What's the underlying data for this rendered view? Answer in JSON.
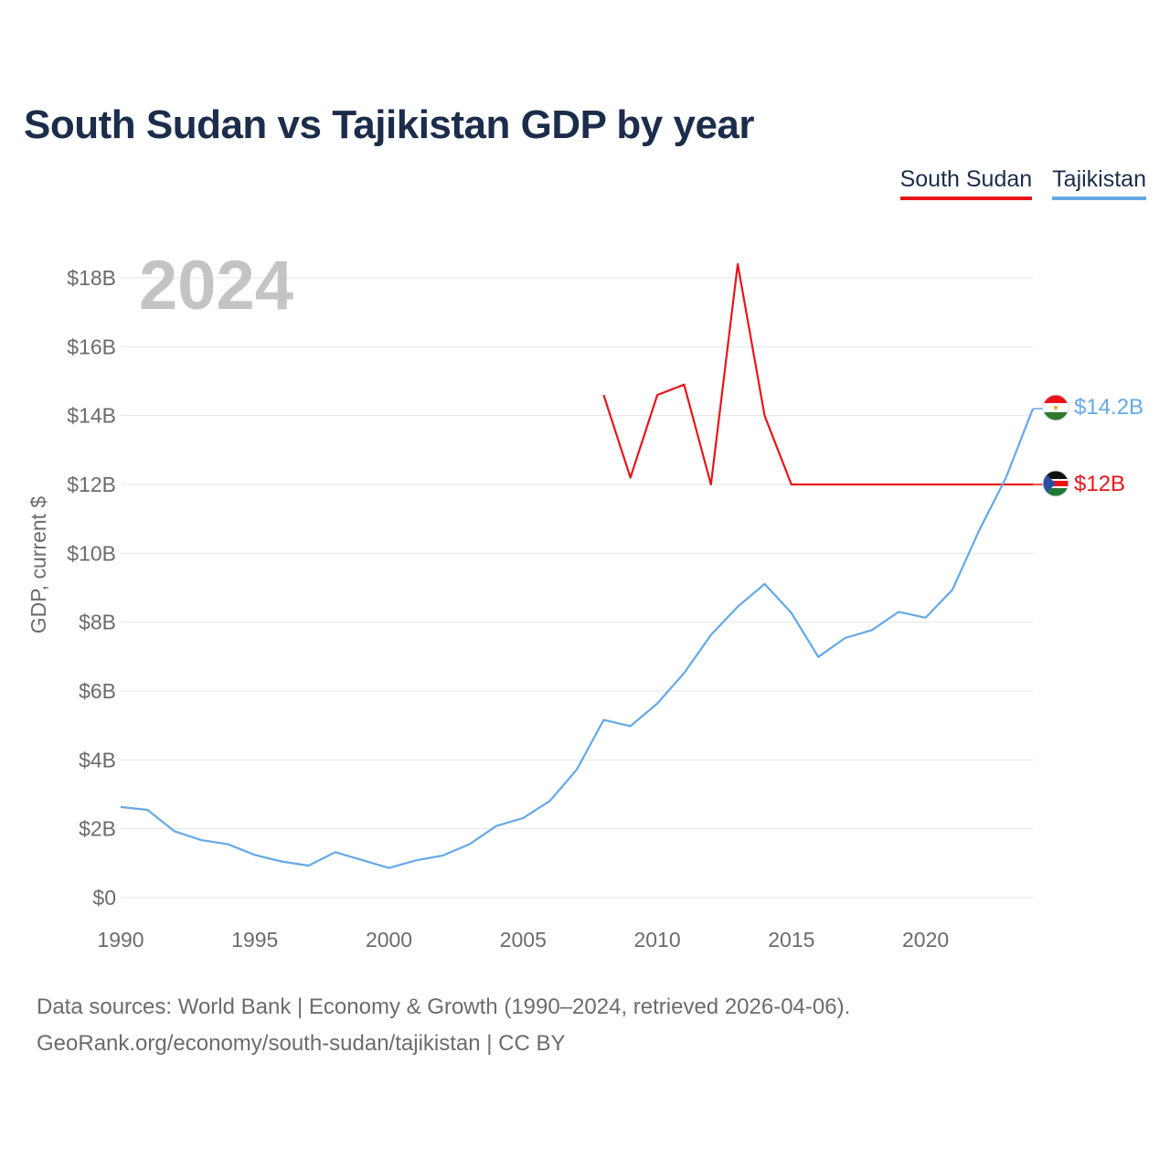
{
  "title": "South Sudan vs Tajikistan GDP by year",
  "legend": [
    {
      "name": "South Sudan",
      "color": "#e8141a"
    },
    {
      "name": "Tajikistan",
      "color": "#64a8e8"
    }
  ],
  "year_label": "2024",
  "footer": {
    "line1": "Data sources: World Bank | Economy & Growth (1990–2024, retrieved 2026-04-06).",
    "line2": "GeoRank.org/economy/south-sudan/tajikistan | CC BY"
  },
  "chart_data": {
    "type": "line",
    "title": "South Sudan vs Tajikistan GDP by year",
    "xlabel": "",
    "ylabel": "GDP, current $",
    "xlim": [
      1990,
      2024
    ],
    "ylim": [
      0,
      18
    ],
    "y_unit": "billion USD",
    "x_ticks": [
      1990,
      1995,
      2000,
      2005,
      2010,
      2015,
      2020
    ],
    "y_ticks": [
      {
        "value": 0,
        "label": "$0"
      },
      {
        "value": 2,
        "label": "$2B"
      },
      {
        "value": 4,
        "label": "$4B"
      },
      {
        "value": 6,
        "label": "$6B"
      },
      {
        "value": 8,
        "label": "$8B"
      },
      {
        "value": 10,
        "label": "$10B"
      },
      {
        "value": 12,
        "label": "$12B"
      },
      {
        "value": 14,
        "label": "$14B"
      },
      {
        "value": 16,
        "label": "$16B"
      },
      {
        "value": 18,
        "label": "$18B"
      }
    ],
    "grid": true,
    "legend_position": "top-right",
    "series": [
      {
        "name": "South Sudan",
        "color": "#e8141a",
        "x": [
          2008,
          2009,
          2010,
          2011,
          2012,
          2013,
          2014,
          2015,
          2024
        ],
        "values": [
          14.6,
          12.2,
          14.6,
          14.9,
          12.0,
          18.4,
          14.0,
          12.0,
          12.0
        ],
        "end_label": "$12B"
      },
      {
        "name": "Tajikistan",
        "color": "#64a8e8",
        "x": [
          1990,
          1991,
          1992,
          1993,
          1994,
          1995,
          1996,
          1997,
          1998,
          1999,
          2000,
          2001,
          2002,
          2003,
          2004,
          2005,
          2006,
          2007,
          2008,
          2009,
          2010,
          2011,
          2012,
          2013,
          2014,
          2015,
          2016,
          2017,
          2018,
          2019,
          2020,
          2021,
          2022,
          2023,
          2024
        ],
        "values": [
          2.63,
          2.55,
          1.93,
          1.67,
          1.55,
          1.24,
          1.05,
          0.93,
          1.32,
          1.09,
          0.86,
          1.08,
          1.22,
          1.55,
          2.08,
          2.31,
          2.81,
          3.72,
          5.16,
          4.98,
          5.64,
          6.52,
          7.63,
          8.45,
          9.11,
          8.27,
          6.99,
          7.54,
          7.77,
          8.3,
          8.13,
          8.94,
          10.67,
          12.2,
          14.2
        ],
        "end_label": "$14.2B"
      }
    ]
  }
}
